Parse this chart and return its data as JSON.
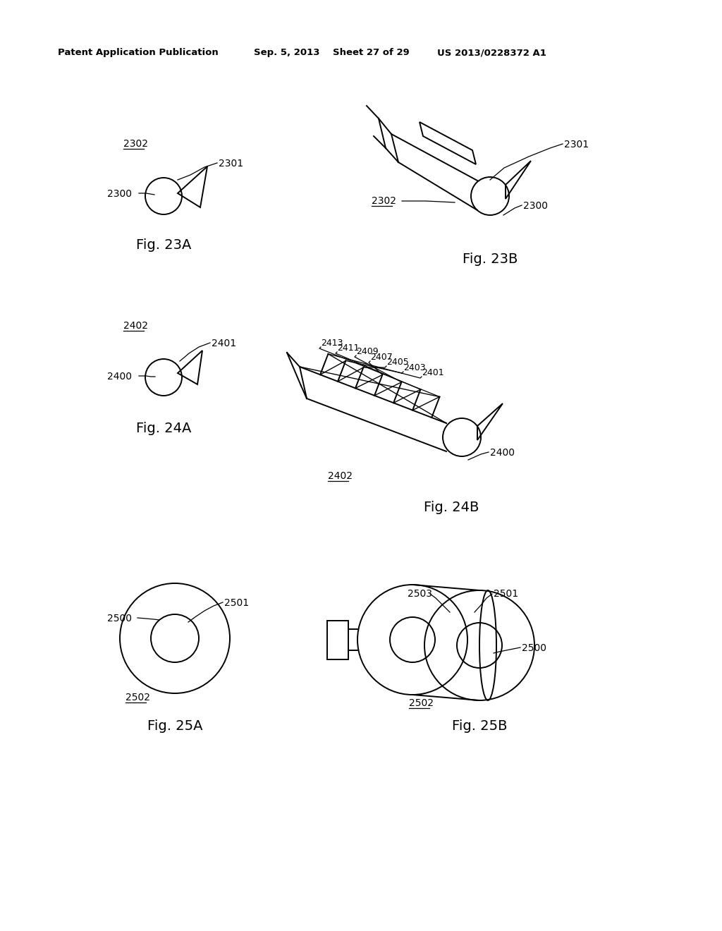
{
  "background_color": "#ffffff",
  "header_text": "Patent Application Publication",
  "header_date": "Sep. 5, 2013",
  "header_sheet": "Sheet 27 of 29",
  "header_patent": "US 2013/0228372 A1",
  "lw": 1.4,
  "fig_label_fontsize": 14,
  "ref_fontsize": 10,
  "header_fontsize": 9.5
}
